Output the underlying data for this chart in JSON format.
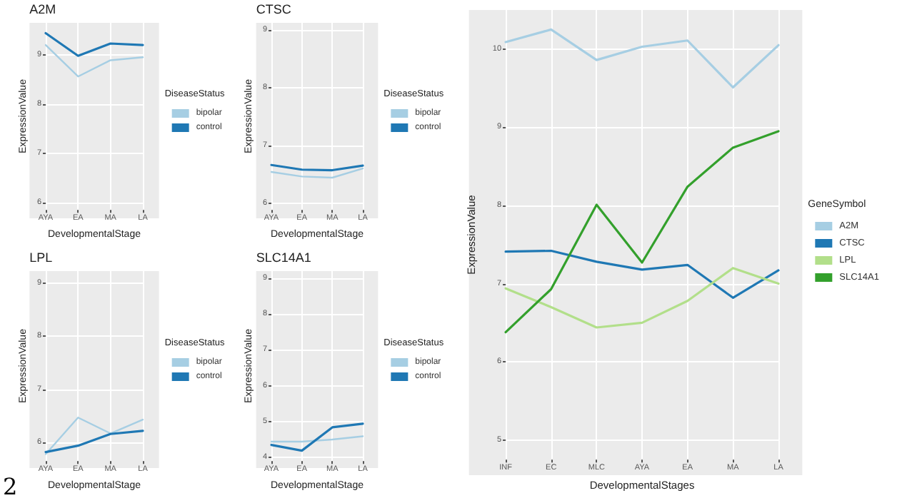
{
  "chart_data": [
    {
      "type": "line",
      "title": "A2M",
      "xlabel": "DevelopmentalStage",
      "ylabel": "ExpressionValue",
      "legend_title": "DiseaseStatus",
      "categories": [
        "AYA",
        "EA",
        "MA",
        "LA"
      ],
      "ylim": [
        5.85,
        9.65
      ],
      "yticks": [
        6,
        7,
        8,
        9
      ],
      "grid": true,
      "legend": "right",
      "marker": "none",
      "series": [
        {
          "name": "bipolar",
          "color": "#a6cee3",
          "values": [
            9.2,
            8.56,
            8.89,
            8.95
          ]
        },
        {
          "name": "control",
          "color": "#1f78b4",
          "values": [
            9.44,
            8.98,
            9.23,
            9.2
          ]
        }
      ]
    },
    {
      "type": "line",
      "title": "CTSC",
      "xlabel": "DevelopmentalStage",
      "ylabel": "ExpressionValue",
      "legend_title": "DiseaseStatus",
      "categories": [
        "AYA",
        "EA",
        "MA",
        "LA"
      ],
      "ylim": [
        5.88,
        9.13
      ],
      "yticks": [
        6,
        7,
        8,
        9
      ],
      "grid": true,
      "legend": "right",
      "marker": "none",
      "series": [
        {
          "name": "bipolar",
          "color": "#a6cee3",
          "values": [
            6.54,
            6.46,
            6.44,
            6.6
          ]
        },
        {
          "name": "control",
          "color": "#1f78b4",
          "values": [
            6.66,
            6.58,
            6.57,
            6.65
          ]
        }
      ]
    },
    {
      "type": "line",
      "xlabel": "DevelopmentalStages",
      "ylabel": "ExpressionValue",
      "legend_title": "GeneSymbol",
      "categories": [
        "INF",
        "EC",
        "MLC",
        "AYA",
        "EA",
        "MA",
        "LA"
      ],
      "ylim": [
        4.75,
        10.5
      ],
      "yticks": [
        5,
        6,
        7,
        8,
        9,
        10
      ],
      "grid": true,
      "legend": "right",
      "marker": "none",
      "series": [
        {
          "name": "A2M",
          "color": "#a6cee3",
          "values": [
            10.09,
            10.25,
            9.86,
            10.03,
            10.11,
            9.51,
            10.05
          ]
        },
        {
          "name": "CTSC",
          "color": "#1f78b4",
          "values": [
            7.41,
            7.42,
            7.28,
            7.18,
            7.24,
            6.82,
            7.17
          ]
        },
        {
          "name": "LPL",
          "color": "#b2df8a",
          "values": [
            6.94,
            6.7,
            6.44,
            6.5,
            6.78,
            7.2,
            7.0
          ]
        },
        {
          "name": "SLC14A1",
          "color": "#33a02c",
          "values": [
            6.38,
            6.93,
            8.01,
            7.27,
            8.24,
            8.74,
            8.95
          ]
        }
      ]
    },
    {
      "type": "line",
      "title": "LPL",
      "xlabel": "DevelopmentalStage",
      "ylabel": "ExpressionValue",
      "legend_title": "DiseaseStatus",
      "categories": [
        "AYA",
        "EA",
        "MA",
        "LA"
      ],
      "ylim": [
        5.65,
        9.23
      ],
      "yticks": [
        6,
        7,
        8,
        9
      ],
      "grid": true,
      "legend": "right",
      "marker": "none",
      "annotations": [
        "2"
      ],
      "series": [
        {
          "name": "bipolar",
          "color": "#a6cee3",
          "values": [
            5.78,
            6.47,
            6.17,
            6.43
          ]
        },
        {
          "name": "control",
          "color": "#1f78b4",
          "values": [
            5.82,
            5.94,
            6.16,
            6.22
          ]
        }
      ]
    },
    {
      "type": "line",
      "title": "SLC14A1",
      "xlabel": "DevelopmentalStage",
      "ylabel": "ExpressionValue",
      "legend_title": "DiseaseStatus",
      "categories": [
        "AYA",
        "EA",
        "MA",
        "LA"
      ],
      "ylim": [
        3.9,
        9.19
      ],
      "yticks": [
        4,
        5,
        6,
        7,
        8,
        9
      ],
      "grid": true,
      "legend": "right",
      "marker": "none",
      "series": [
        {
          "name": "bipolar",
          "color": "#a6cee3",
          "values": [
            4.44,
            4.44,
            4.5,
            4.59
          ]
        },
        {
          "name": "control",
          "color": "#1f78b4",
          "values": [
            4.35,
            4.19,
            4.84,
            4.94
          ]
        }
      ]
    }
  ]
}
